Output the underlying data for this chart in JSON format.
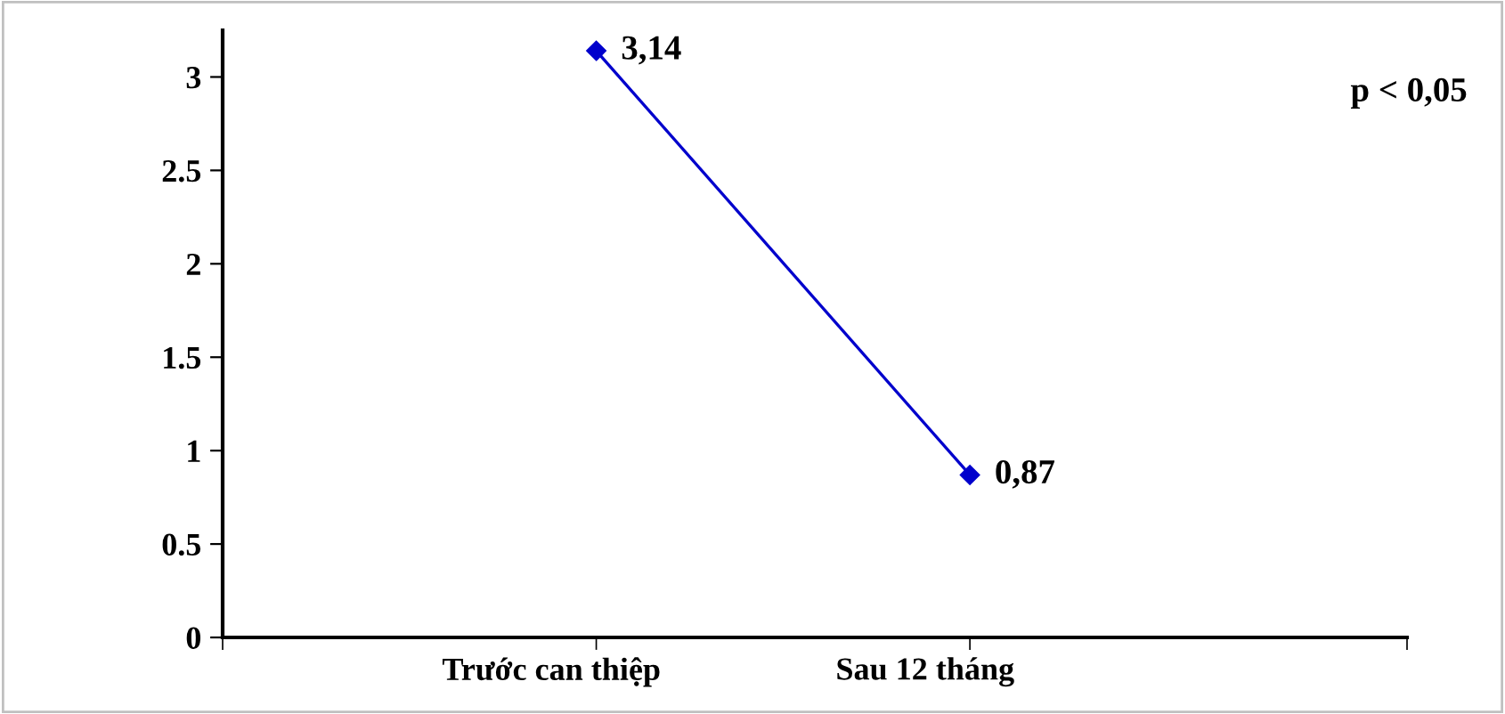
{
  "chart_data": {
    "type": "line",
    "categories": [
      "Trước can thiệp",
      "Sau 12 tháng"
    ],
    "series": [
      {
        "color": "#0000cc",
        "values": [
          3.14,
          0.87
        ],
        "value_labels": [
          "3,14",
          "0,87"
        ]
      }
    ],
    "ylim": [
      0,
      3.25
    ],
    "yticks": [
      0,
      0.5,
      1,
      1.5,
      2,
      2.5,
      3
    ],
    "marker": "diamond",
    "line_style": "solid",
    "grid": false,
    "legend": false,
    "annotations": [
      "p < 0,05"
    ]
  }
}
